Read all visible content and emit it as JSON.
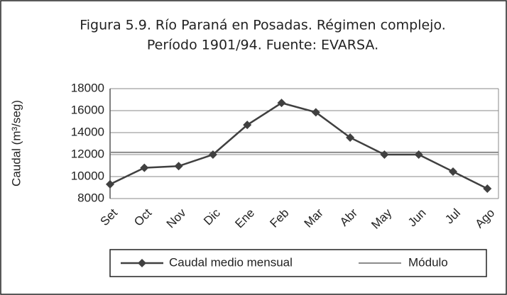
{
  "chart_data": {
    "type": "line",
    "title": [
      "Figura 5.9. Río Paraná en Posadas. Régimen complejo.",
      "Período 1901/94. Fuente: EVARSA."
    ],
    "y_label": "Caudal (m³/seg)",
    "categories": [
      "Set",
      "Oct",
      "Nov",
      "Dic",
      "Ene",
      "Feb",
      "Mar",
      "Abr",
      "May",
      "Jun",
      "Jul",
      "Ago"
    ],
    "series": [
      {
        "name": "Caudal medio mensual",
        "color": "#404040",
        "values": [
          9300,
          10800,
          10950,
          12000,
          14700,
          16700,
          15850,
          13550,
          12000,
          12000,
          10450,
          8900
        ]
      }
    ],
    "reference_lines": [
      {
        "name": "Módulo",
        "value": 12200,
        "color": "#8c8c8c"
      }
    ],
    "ylim": [
      8000,
      18000
    ],
    "yticks": [
      8000,
      10000,
      12000,
      14000,
      16000,
      18000
    ],
    "grid": true
  }
}
